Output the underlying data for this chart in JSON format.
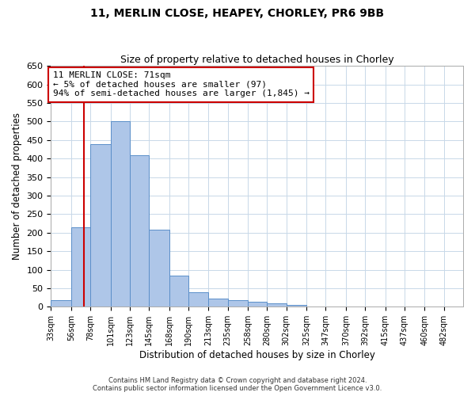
{
  "title": "11, MERLIN CLOSE, HEAPEY, CHORLEY, PR6 9BB",
  "subtitle": "Size of property relative to detached houses in Chorley",
  "xlabel": "Distribution of detached houses by size in Chorley",
  "ylabel": "Number of detached properties",
  "bin_labels": [
    "33sqm",
    "56sqm",
    "78sqm",
    "101sqm",
    "123sqm",
    "145sqm",
    "168sqm",
    "190sqm",
    "213sqm",
    "235sqm",
    "258sqm",
    "280sqm",
    "302sqm",
    "325sqm",
    "347sqm",
    "370sqm",
    "392sqm",
    "415sqm",
    "437sqm",
    "460sqm",
    "482sqm"
  ],
  "bin_edges": [
    33,
    56,
    78,
    101,
    123,
    145,
    168,
    190,
    213,
    235,
    258,
    280,
    302,
    325,
    347,
    370,
    392,
    415,
    437,
    460,
    482
  ],
  "bar_heights": [
    18,
    215,
    438,
    500,
    408,
    207,
    85,
    40,
    22,
    18,
    13,
    10,
    5,
    1,
    0,
    0,
    0,
    0,
    0,
    0
  ],
  "bar_color": "#aec6e8",
  "bar_edge_color": "#5b8fc9",
  "grid_color": "#c8d8e8",
  "property_line_x": 71,
  "property_line_color": "#cc0000",
  "annotation_text": "11 MERLIN CLOSE: 71sqm\n← 5% of detached houses are smaller (97)\n94% of semi-detached houses are larger (1,845) →",
  "annotation_box_color": "#ffffff",
  "annotation_box_edge_color": "#cc0000",
  "ylim": [
    0,
    650
  ],
  "yticks": [
    0,
    50,
    100,
    150,
    200,
    250,
    300,
    350,
    400,
    450,
    500,
    550,
    600,
    650
  ],
  "footnote1": "Contains HM Land Registry data © Crown copyright and database right 2024.",
  "footnote2": "Contains public sector information licensed under the Open Government Licence v3.0.",
  "background_color": "#ffffff",
  "fig_width": 6.0,
  "fig_height": 5.0,
  "dpi": 100
}
